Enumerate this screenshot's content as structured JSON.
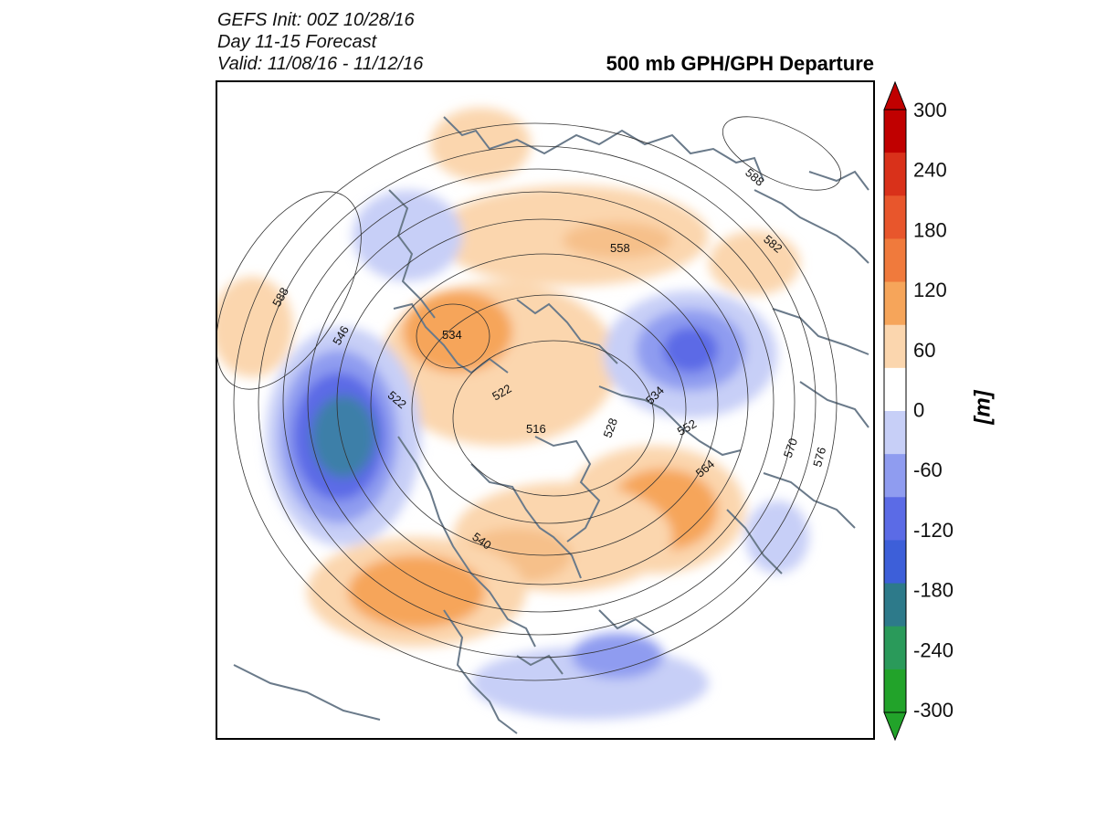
{
  "header": {
    "line1": "GEFS Init: 00Z 10/28/16",
    "line2": "Day 11-15 Forecast",
    "line3": "Valid: 11/08/16 - 11/12/16"
  },
  "title": "500 mb GPH/GPH Departure",
  "contour_labels": [
    "588",
    "546",
    "534",
    "522",
    "516",
    "522",
    "528",
    "534",
    "552",
    "564",
    "570",
    "576",
    "558",
    "588",
    "582",
    "540"
  ],
  "colorbar": {
    "unit": "[m]",
    "ticks": [
      "300",
      "240",
      "180",
      "120",
      "60",
      "0",
      "-60",
      "-120",
      "-180",
      "-240",
      "-300"
    ],
    "colors": [
      "#c00000",
      "#d9311a",
      "#e8562c",
      "#f07a3c",
      "#f6a55a",
      "#fbd6ae",
      "#ffffff",
      "#c7cff7",
      "#8f9cf0",
      "#5b6be6",
      "#3d5fd9",
      "#2d7a8a",
      "#2a9a5a",
      "#22a32a"
    ]
  }
}
